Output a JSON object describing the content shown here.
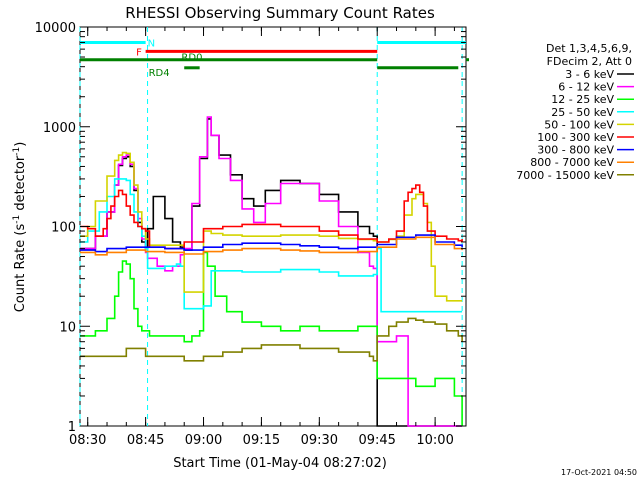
{
  "chart_data": {
    "type": "line",
    "title": "RHESSI Observing Summary Count Rates",
    "xlabel": "Start Time (01-May-04 08:27:02)",
    "ylabel_main": "Count Rate (s",
    "ylabel_sup1": "-1",
    "ylabel_mid": " detector",
    "ylabel_sup2": "-1",
    "ylabel_end": ")",
    "ylim": [
      1,
      10000
    ],
    "yscale": "log",
    "xlim_min": [
      508,
      608
    ],
    "y_ticks": [
      {
        "v": 1,
        "label": "1"
      },
      {
        "v": 10,
        "label": "10"
      },
      {
        "v": 100,
        "label": "100"
      },
      {
        "v": 1000,
        "label": "1000"
      },
      {
        "v": 10000,
        "label": "10000"
      }
    ],
    "x_ticks": [
      {
        "m": 510,
        "label": "08:30"
      },
      {
        "m": 525,
        "label": "08:45"
      },
      {
        "m": 540,
        "label": "09:00"
      },
      {
        "m": 555,
        "label": "09:15"
      },
      {
        "m": 570,
        "label": "09:30"
      },
      {
        "m": 585,
        "label": "09:45"
      },
      {
        "m": 600,
        "label": "10:00"
      }
    ],
    "legend_header": [
      "Det 1,3,4,5,6,9,",
      "FDecim 2, Att 0"
    ],
    "legend": [
      {
        "name": "3 - 6 keV",
        "color": "#000000"
      },
      {
        "name": "6 - 12 keV",
        "color": "#ff00ff"
      },
      {
        "name": "12 - 25 keV",
        "color": "#00ff00"
      },
      {
        "name": "25 - 50 keV",
        "color": "#00ffff"
      },
      {
        "name": "50 - 100 keV",
        "color": "#d4d400"
      },
      {
        "name": "100 - 300 keV",
        "color": "#ff0000"
      },
      {
        "name": "300 - 800 keV",
        "color": "#0000ff"
      },
      {
        "name": "800 - 7000 keV",
        "color": "#ff8000"
      },
      {
        "name": "7000 - 15000 keV",
        "color": "#808000"
      }
    ],
    "flags": [
      {
        "label": "N",
        "color": "#00ffff",
        "level": 7000,
        "segments": [
          [
            508,
            525
          ],
          [
            585,
            608
          ]
        ]
      },
      {
        "label": "F",
        "color": "#ff0000",
        "level": 5700,
        "segments": [
          [
            525,
            585
          ]
        ]
      },
      {
        "label": "RD0",
        "color": "#008000",
        "level": 4700,
        "segments": [
          [
            508,
            585
          ],
          [
            608,
            608
          ]
        ]
      },
      {
        "label": "RD4",
        "color": "#008000",
        "level": 3900,
        "segments": [
          [
            535,
            539
          ],
          [
            585,
            606
          ]
        ]
      }
    ],
    "dashed_lines": [
      508,
      525.5,
      585,
      607
    ],
    "series": [
      {
        "name": "3 - 6 keV",
        "color": "#000000",
        "x": [
          508,
          512,
          515,
          517,
          518,
          519,
          520,
          521,
          522,
          523,
          524,
          525,
          525.5,
          527,
          530,
          532,
          534,
          535,
          537,
          539,
          541,
          542,
          544,
          547,
          550,
          553,
          556,
          560,
          565,
          570,
          575,
          580,
          583,
          584,
          585,
          588,
          590,
          593,
          595,
          597,
          600,
          603,
          606,
          607
        ],
        "y": [
          60,
          80,
          140,
          260,
          410,
          480,
          500,
          400,
          230,
          110,
          70,
          60,
          95,
          200,
          120,
          70,
          62,
          58,
          160,
          480,
          1200,
          820,
          520,
          330,
          190,
          160,
          230,
          290,
          270,
          210,
          140,
          100,
          85,
          80,
          1,
          1,
          1,
          1,
          1,
          1,
          1,
          1,
          1,
          1
        ]
      },
      {
        "name": "6 - 12 keV",
        "color": "#ff00ff",
        "x": [
          508,
          512,
          515,
          517,
          518,
          519,
          520,
          521,
          522,
          523,
          524,
          525,
          525.5,
          528,
          530,
          532,
          534,
          535,
          537,
          539,
          541,
          542,
          544,
          547,
          550,
          553,
          556,
          560,
          565,
          570,
          575,
          580,
          583,
          584,
          585,
          588,
          590,
          593,
          595,
          597,
          600,
          603,
          606,
          607
        ],
        "y": [
          60,
          80,
          140,
          260,
          420,
          500,
          520,
          420,
          240,
          120,
          75,
          55,
          48,
          40,
          36,
          40,
          52,
          60,
          170,
          500,
          1250,
          820,
          480,
          290,
          150,
          110,
          170,
          270,
          270,
          180,
          100,
          55,
          40,
          38,
          7,
          7,
          8,
          1,
          1,
          1,
          1,
          1,
          1,
          1
        ]
      },
      {
        "name": "12 - 25 keV",
        "color": "#00ff00",
        "x": [
          508,
          512,
          515,
          517,
          518,
          519,
          520,
          521,
          522,
          523,
          524,
          525,
          526,
          530,
          533,
          535,
          537,
          539,
          540,
          541,
          543,
          546,
          550,
          555,
          560,
          565,
          570,
          575,
          580,
          585,
          590,
          595,
          600,
          605,
          607
        ],
        "y": [
          8,
          9,
          12,
          20,
          35,
          45,
          42,
          30,
          15,
          10,
          9,
          9,
          8,
          8,
          8,
          7,
          8,
          9,
          55,
          40,
          20,
          14,
          11,
          10,
          9,
          10,
          9,
          9,
          10,
          3,
          3,
          2.5,
          3,
          2,
          1
        ]
      },
      {
        "name": "25 - 50 keV",
        "color": "#00ffff",
        "x": [
          508,
          510,
          513,
          515,
          517,
          518,
          519,
          520,
          521,
          522,
          523,
          524,
          525,
          525.5,
          530,
          533,
          534,
          535,
          536,
          538,
          539,
          540,
          542,
          545,
          548,
          550,
          555,
          560,
          565,
          570,
          575,
          580,
          584,
          585,
          586,
          590,
          592,
          595,
          597,
          600,
          602,
          605,
          607
        ],
        "y": [
          70,
          90,
          140,
          200,
          300,
          300,
          300,
          290,
          210,
          140,
          100,
          80,
          60,
          38,
          40,
          42,
          40,
          15,
          15,
          15,
          15,
          16,
          36,
          36,
          36,
          35,
          35,
          37,
          37,
          35,
          32,
          32,
          33,
          60,
          14,
          14,
          14,
          14,
          14,
          14,
          14,
          14,
          14
        ]
      },
      {
        "name": "50 - 100 keV",
        "color": "#d4d400",
        "x": [
          508,
          510,
          512,
          515,
          517,
          518,
          519,
          520,
          521,
          522,
          523,
          524,
          525,
          526,
          530,
          533,
          534,
          535,
          537,
          539,
          540,
          542,
          545,
          550,
          555,
          560,
          565,
          570,
          575,
          580,
          584,
          585,
          588,
          590,
          592,
          594,
          595,
          597,
          598,
          599,
          600,
          603,
          606,
          607
        ],
        "y": [
          80,
          100,
          180,
          320,
          460,
          520,
          550,
          540,
          440,
          260,
          140,
          95,
          75,
          65,
          65,
          65,
          65,
          22,
          22,
          22,
          90,
          85,
          82,
          80,
          80,
          82,
          82,
          80,
          76,
          74,
          72,
          70,
          74,
          80,
          130,
          190,
          210,
          170,
          110,
          40,
          20,
          18,
          18,
          18
        ]
      },
      {
        "name": "100 - 300 keV",
        "color": "#ff0000",
        "x": [
          508,
          510,
          512,
          514,
          515,
          516,
          517,
          518,
          519,
          520,
          521,
          522,
          523,
          524,
          525,
          526,
          530,
          535,
          540,
          545,
          550,
          555,
          560,
          565,
          570,
          575,
          580,
          585,
          588,
          590,
          592,
          593,
          594,
          595,
          596,
          597,
          598,
          600,
          603,
          606,
          607
        ],
        "y": [
          100,
          95,
          80,
          95,
          120,
          160,
          200,
          230,
          210,
          160,
          130,
          110,
          100,
          95,
          90,
          62,
          60,
          70,
          95,
          100,
          105,
          105,
          100,
          100,
          90,
          82,
          75,
          70,
          75,
          90,
          180,
          220,
          240,
          260,
          220,
          160,
          90,
          80,
          75,
          72,
          75
        ]
      },
      {
        "name": "300 - 800 keV",
        "color": "#0000ff",
        "x": [
          508,
          512,
          515,
          520,
          525,
          530,
          535,
          540,
          545,
          550,
          555,
          560,
          565,
          570,
          575,
          580,
          585,
          590,
          595,
          600,
          605,
          607
        ],
        "y": [
          58,
          56,
          60,
          62,
          62,
          60,
          58,
          62,
          66,
          68,
          68,
          66,
          64,
          62,
          60,
          62,
          66,
          78,
          82,
          70,
          65,
          62
        ]
      },
      {
        "name": "800 - 7000 keV",
        "color": "#ff8000",
        "x": [
          508,
          512,
          515,
          520,
          525,
          530,
          535,
          540,
          545,
          550,
          555,
          560,
          565,
          570,
          575,
          580,
          585,
          590,
          595,
          600,
          605,
          607
        ],
        "y": [
          55,
          52,
          55,
          58,
          56,
          55,
          53,
          56,
          58,
          60,
          60,
          58,
          57,
          55,
          55,
          56,
          62,
          75,
          78,
          66,
          60,
          58
        ]
      },
      {
        "name": "7000 - 15000 keV",
        "color": "#808000",
        "x": [
          508,
          512,
          515,
          520,
          525,
          530,
          535,
          540,
          545,
          550,
          555,
          560,
          565,
          570,
          575,
          580,
          583,
          584,
          585,
          588,
          590,
          593,
          595,
          597,
          600,
          603,
          606,
          607
        ],
        "y": [
          5,
          5,
          5,
          6,
          5,
          5,
          4.5,
          5,
          5.5,
          6,
          6.5,
          6.5,
          6,
          6,
          5.5,
          5.5,
          5,
          4.5,
          8,
          10,
          11,
          12,
          11.5,
          11,
          10.5,
          9,
          8,
          7
        ]
      }
    ],
    "timestamp": "17-Oct-2021 04:50"
  }
}
